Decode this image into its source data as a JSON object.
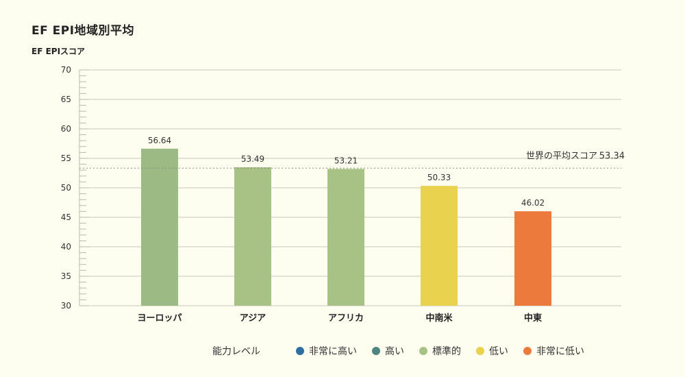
{
  "chart_data": {
    "type": "bar",
    "title": "EF EPI地域別平均",
    "ylabel": "EF EPIスコア",
    "xlabel": "",
    "ylim": [
      30,
      70
    ],
    "yticks": [
      30,
      35,
      40,
      45,
      50,
      55,
      60,
      65,
      70
    ],
    "grid": true,
    "categories": [
      "ヨーロッパ",
      "アジア",
      "アフリカ",
      "中南米",
      "中東"
    ],
    "values": [
      56.64,
      53.49,
      53.21,
      50.33,
      46.02
    ],
    "value_labels": [
      "56.64",
      "53.49",
      "53.21",
      "50.33",
      "46.02"
    ],
    "bar_colors": [
      "#9cbb84",
      "#a8c185",
      "#a8c185",
      "#e8d24e",
      "#ec7a3c"
    ],
    "reference_line": {
      "label": "世界の平均スコア",
      "value": 53.34,
      "value_label": "53.34"
    },
    "legend": {
      "title": "能力レベル",
      "items": [
        {
          "label": "非常に高い",
          "color": "#2f6f9f"
        },
        {
          "label": "高い",
          "color": "#4f8580"
        },
        {
          "label": "標準的",
          "color": "#a8c185"
        },
        {
          "label": "低い",
          "color": "#e8d24e"
        },
        {
          "label": "非常に低い",
          "color": "#ec7a3c"
        }
      ]
    }
  }
}
